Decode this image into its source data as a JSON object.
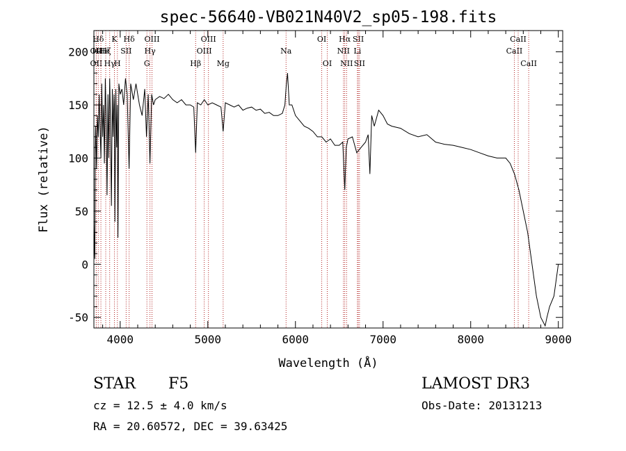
{
  "chart_data": {
    "type": "line",
    "title": "spec-56640-VB021N40V2_sp05-198.fits",
    "xlabel": "Wavelength (Å)",
    "ylabel": "Flux (relative)",
    "xlim": [
      3700,
      9050
    ],
    "ylim": [
      -60,
      220
    ],
    "xticks": [
      4000,
      5000,
      6000,
      7000,
      8000,
      9000
    ],
    "yticks": [
      -50,
      0,
      50,
      100,
      150,
      200
    ],
    "grid": false,
    "series": [
      {
        "name": "flux",
        "x": [
          3700,
          3705,
          3710,
          3715,
          3720,
          3730,
          3740,
          3750,
          3760,
          3770,
          3780,
          3790,
          3800,
          3810,
          3820,
          3830,
          3840,
          3850,
          3860,
          3870,
          3880,
          3890,
          3900,
          3910,
          3920,
          3930,
          3934,
          3940,
          3950,
          3960,
          3968,
          3975,
          3985,
          4000,
          4020,
          4040,
          4060,
          4080,
          4102,
          4120,
          4150,
          4180,
          4200,
          4220,
          4250,
          4280,
          4300,
          4320,
          4340,
          4360,
          4380,
          4400,
          4450,
          4500,
          4550,
          4600,
          4650,
          4700,
          4750,
          4800,
          4840,
          4861,
          4880,
          4920,
          4960,
          5000,
          5050,
          5100,
          5150,
          5175,
          5200,
          5250,
          5300,
          5350,
          5400,
          5450,
          5500,
          5550,
          5600,
          5650,
          5700,
          5750,
          5800,
          5850,
          5880,
          5895,
          5910,
          5930,
          5960,
          6000,
          6050,
          6100,
          6150,
          6200,
          6250,
          6300,
          6350,
          6400,
          6450,
          6500,
          6540,
          6563,
          6580,
          6600,
          6650,
          6700,
          6750,
          6800,
          6830,
          6850,
          6870,
          6900,
          6950,
          7000,
          7050,
          7100,
          7200,
          7300,
          7400,
          7500,
          7600,
          7700,
          7800,
          7900,
          8000,
          8100,
          8200,
          8300,
          8400,
          8450,
          8500,
          8550,
          8600,
          8650,
          8700,
          8750,
          8800,
          8850,
          8870,
          8900,
          8950,
          9000
        ],
        "values": [
          40,
          20,
          5,
          110,
          130,
          90,
          140,
          120,
          160,
          130,
          100,
          170,
          120,
          150,
          95,
          175,
          140,
          65,
          160,
          100,
          175,
          130,
          55,
          165,
          120,
          160,
          150,
          40,
          165,
          110,
          150,
          25,
          170,
          160,
          165,
          150,
          175,
          160,
          90,
          170,
          155,
          170,
          160,
          150,
          140,
          165,
          120,
          160,
          95,
          160,
          150,
          155,
          158,
          156,
          160,
          155,
          152,
          155,
          150,
          150,
          148,
          105,
          152,
          150,
          155,
          150,
          152,
          150,
          148,
          125,
          152,
          150,
          148,
          150,
          145,
          147,
          148,
          145,
          146,
          142,
          143,
          140,
          140,
          142,
          150,
          168,
          180,
          150,
          150,
          140,
          135,
          130,
          128,
          125,
          120,
          120,
          115,
          118,
          112,
          112,
          115,
          70,
          110,
          118,
          120,
          105,
          110,
          115,
          122,
          85,
          140,
          130,
          145,
          140,
          132,
          130,
          128,
          123,
          120,
          122,
          115,
          113,
          112,
          110,
          108,
          105,
          102,
          100,
          100,
          95,
          85,
          70,
          50,
          30,
          0,
          -30,
          -50,
          -58,
          -50,
          -40,
          -30,
          0
        ],
        "color": "#000000"
      }
    ],
    "lines": [
      {
        "label": "Hδ",
        "wavelength": 3750,
        "row": 1
      },
      {
        "label": "OII",
        "wavelength": 3727,
        "row": 2
      },
      {
        "label": "OII",
        "wavelength": 3727,
        "row": 3
      },
      {
        "label": "HHe",
        "wavelength": 3780,
        "row": 2
      },
      {
        "label": "Hζ",
        "wavelength": 3835,
        "row": 2
      },
      {
        "label": "Hγ",
        "wavelength": 3880,
        "row": 3
      },
      {
        "label": "K",
        "wavelength": 3934,
        "row": 1
      },
      {
        "label": "H",
        "wavelength": 3968,
        "row": 3
      },
      {
        "label": "SII",
        "wavelength": 4068,
        "row": 2
      },
      {
        "label": "Hδ",
        "wavelength": 4102,
        "row": 1
      },
      {
        "label": "G",
        "wavelength": 4305,
        "row": 3
      },
      {
        "label": "OIII",
        "wavelength": 4363,
        "row": 1
      },
      {
        "label": "Hγ",
        "wavelength": 4340,
        "row": 2
      },
      {
        "label": "Hβ",
        "wavelength": 4861,
        "row": 3
      },
      {
        "label": "OIII",
        "wavelength": 4959,
        "row": 2
      },
      {
        "label": "OIII",
        "wavelength": 5007,
        "row": 1
      },
      {
        "label": "Mg",
        "wavelength": 5175,
        "row": 3
      },
      {
        "label": "Na",
        "wavelength": 5893,
        "row": 2
      },
      {
        "label": "OI",
        "wavelength": 6300,
        "row": 1
      },
      {
        "label": "OI",
        "wavelength": 6363,
        "row": 3
      },
      {
        "label": "Hα",
        "wavelength": 6563,
        "row": 1
      },
      {
        "label": "NII",
        "wavelength": 6548,
        "row": 2
      },
      {
        "label": "NII",
        "wavelength": 6584,
        "row": 3
      },
      {
        "label": "SII",
        "wavelength": 6717,
        "row": 1
      },
      {
        "label": "Li",
        "wavelength": 6707,
        "row": 2
      },
      {
        "label": "SII",
        "wavelength": 6731,
        "row": 3
      },
      {
        "label": "CaII",
        "wavelength": 8498,
        "row": 2
      },
      {
        "label": "CaII",
        "wavelength": 8542,
        "row": 1
      },
      {
        "label": "CaII",
        "wavelength": 8662,
        "row": 3
      }
    ]
  },
  "info": {
    "object_class": "STAR",
    "subclass": "F5",
    "redshift": "cz = 12.5 ± 4.0 km/s",
    "coords": "RA =  20.60572, DEC =  39.63425",
    "survey": "LAMOST DR3",
    "obs_date": "Obs-Date: 20131213"
  }
}
